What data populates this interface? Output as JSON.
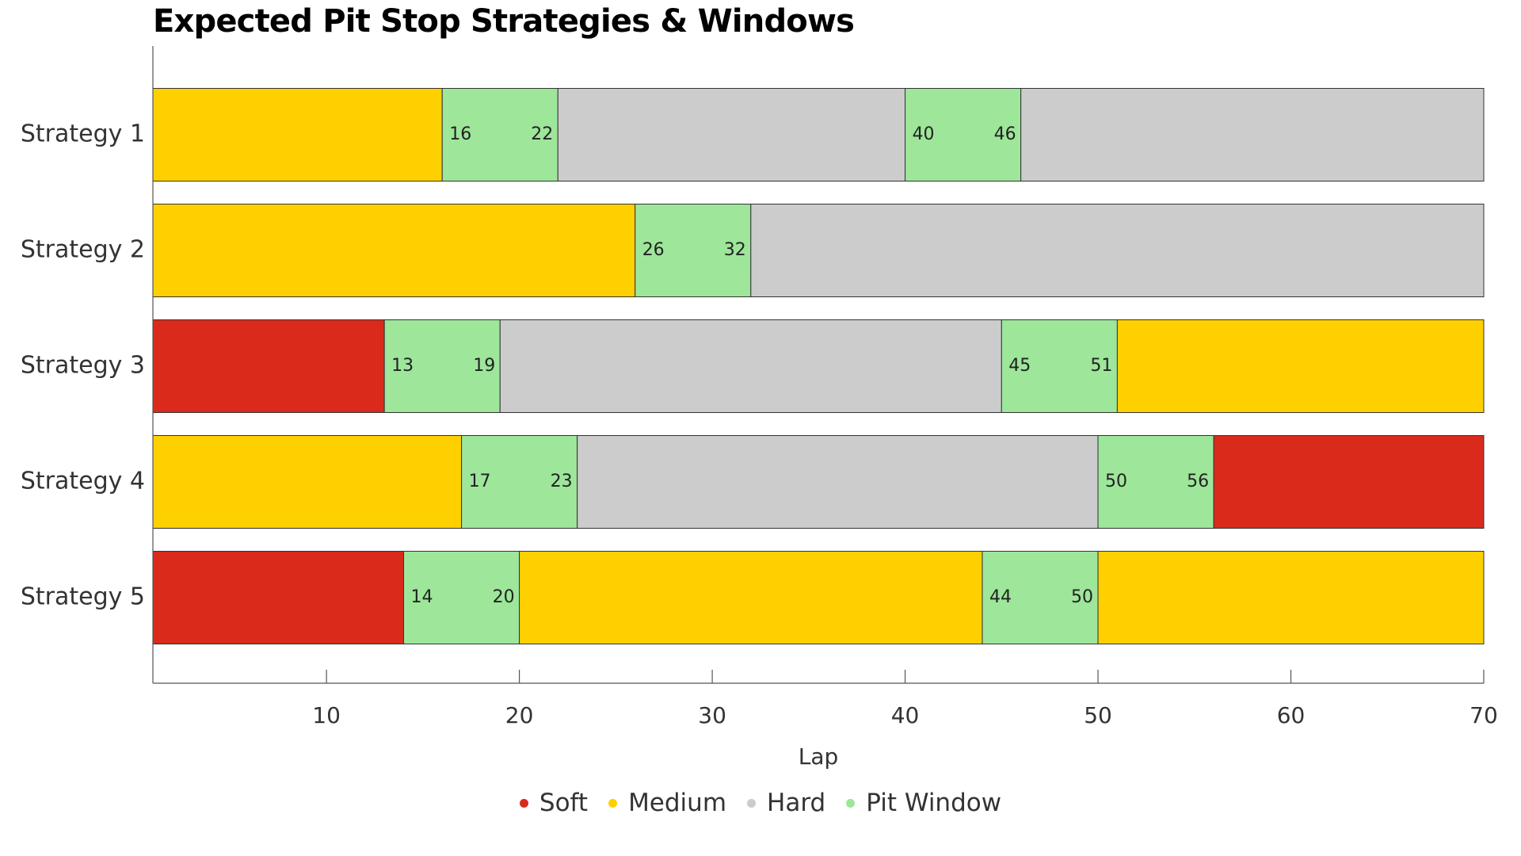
{
  "title": "Expected Pit Stop Strategies & Windows",
  "chart_data": {
    "type": "bar",
    "orientation": "horizontal-stacked",
    "title": "Expected Pit Stop Strategies & Windows",
    "xlabel": "Lap",
    "ylabel": "",
    "xlim": [
      1,
      70
    ],
    "xticks": [
      10,
      20,
      30,
      40,
      50,
      60,
      70
    ],
    "grid": false,
    "legend_position": "bottom",
    "compounds": {
      "Soft": "#d92a1c",
      "Medium": "#fed000",
      "Hard": "#cccccc",
      "Pit Window": "#9de69a"
    },
    "categories": [
      "Strategy 1",
      "Strategy 2",
      "Strategy 3",
      "Strategy 4",
      "Strategy 5"
    ],
    "strategies": [
      {
        "name": "Strategy 1",
        "segments": [
          {
            "compound": "Medium",
            "start": 1,
            "end": 16
          },
          {
            "compound": "Pit Window",
            "start": 16,
            "end": 22
          },
          {
            "compound": "Hard",
            "start": 22,
            "end": 40
          },
          {
            "compound": "Pit Window",
            "start": 40,
            "end": 46
          },
          {
            "compound": "Hard",
            "start": 46,
            "end": 70
          }
        ]
      },
      {
        "name": "Strategy 2",
        "segments": [
          {
            "compound": "Medium",
            "start": 1,
            "end": 26
          },
          {
            "compound": "Pit Window",
            "start": 26,
            "end": 32
          },
          {
            "compound": "Hard",
            "start": 32,
            "end": 70
          }
        ]
      },
      {
        "name": "Strategy 3",
        "segments": [
          {
            "compound": "Soft",
            "start": 1,
            "end": 13
          },
          {
            "compound": "Pit Window",
            "start": 13,
            "end": 19
          },
          {
            "compound": "Hard",
            "start": 19,
            "end": 45
          },
          {
            "compound": "Pit Window",
            "start": 45,
            "end": 51
          },
          {
            "compound": "Medium",
            "start": 51,
            "end": 70
          }
        ]
      },
      {
        "name": "Strategy 4",
        "segments": [
          {
            "compound": "Medium",
            "start": 1,
            "end": 17
          },
          {
            "compound": "Pit Window",
            "start": 17,
            "end": 23
          },
          {
            "compound": "Hard",
            "start": 23,
            "end": 50
          },
          {
            "compound": "Pit Window",
            "start": 50,
            "end": 56
          },
          {
            "compound": "Soft",
            "start": 56,
            "end": 70
          }
        ]
      },
      {
        "name": "Strategy 5",
        "segments": [
          {
            "compound": "Soft",
            "start": 1,
            "end": 14
          },
          {
            "compound": "Pit Window",
            "start": 14,
            "end": 20
          },
          {
            "compound": "Medium",
            "start": 20,
            "end": 44
          },
          {
            "compound": "Pit Window",
            "start": 44,
            "end": 50
          },
          {
            "compound": "Medium",
            "start": 50,
            "end": 70
          }
        ]
      }
    ],
    "legend": [
      "Soft",
      "Medium",
      "Hard",
      "Pit Window"
    ]
  }
}
